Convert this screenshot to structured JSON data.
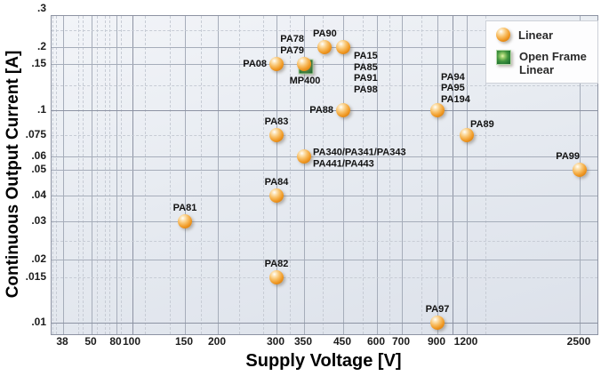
{
  "chart_data": {
    "type": "scatter",
    "xlabel": "Supply Voltage [V]",
    "ylabel": "Continuous Output Current [A]",
    "x_scale": "log",
    "y_scale": "log",
    "xlim": [
      35,
      2800
    ],
    "ylim": [
      0.009,
      0.3
    ],
    "grid": true,
    "legend_position": "top-right",
    "x_ticks": [
      38,
      50,
      80,
      100,
      150,
      200,
      300,
      350,
      450,
      600,
      700,
      900,
      1200,
      2500
    ],
    "x_tick_labels": [
      "38",
      "50",
      "80",
      "100",
      "150",
      "200",
      "300",
      "350",
      "450",
      "600",
      "700",
      "900",
      "1200",
      "2500"
    ],
    "y_ticks": [
      0.3,
      0.2,
      0.15,
      0.1,
      0.075,
      0.06,
      0.05,
      0.04,
      0.03,
      0.02,
      0.015,
      0.01
    ],
    "y_tick_labels": [
      ".3",
      ".2",
      ".15",
      ".1",
      ".075",
      ".06",
      ".05",
      ".04",
      ".03",
      ".02",
      ".015",
      ".01"
    ],
    "legend": [
      {
        "label": "Linear",
        "marker": "sphere",
        "color": "#f09a26"
      },
      {
        "label": "Open Frame Linear",
        "marker": "square",
        "color": "#2e8b3d"
      }
    ],
    "points": [
      {
        "label": "PA08",
        "lines": [
          "PA08"
        ],
        "x": 300,
        "y": 0.15,
        "series": "Linear",
        "label_pos": "left"
      },
      {
        "label": "MP400",
        "lines": [
          "MP400"
        ],
        "x": 350,
        "y": 0.15,
        "series": "Open Frame Linear",
        "label_pos": "below"
      },
      {
        "label": "PA78/PA79",
        "lines": [
          "PA78",
          "PA79"
        ],
        "x": 350,
        "y": 0.15,
        "series": "Linear",
        "label_pos": "above-left"
      },
      {
        "label": "PA90",
        "lines": [
          "PA90"
        ],
        "x": 400,
        "y": 0.2,
        "series": "Linear",
        "label_pos": "above"
      },
      {
        "label": "PA15/PA85/PA91/PA98",
        "lines": [
          "PA15",
          "PA85",
          "PA91",
          "PA98"
        ],
        "x": 450,
        "y": 0.2,
        "series": "Linear",
        "label_pos": "right-below"
      },
      {
        "label": "PA88",
        "lines": [
          "PA88"
        ],
        "x": 450,
        "y": 0.1,
        "series": "Linear",
        "label_pos": "left"
      },
      {
        "label": "PA94/PA95/PA194",
        "lines": [
          "PA94",
          "PA95",
          "PA194"
        ],
        "x": 900,
        "y": 0.1,
        "series": "Linear",
        "label_pos": "above-right"
      },
      {
        "label": "PA83",
        "lines": [
          "PA83"
        ],
        "x": 300,
        "y": 0.075,
        "series": "Linear",
        "label_pos": "above"
      },
      {
        "label": "PA89",
        "lines": [
          "PA89"
        ],
        "x": 1200,
        "y": 0.075,
        "series": "Linear",
        "label_pos": "above-right"
      },
      {
        "label": "PA340/PA341/PA343 PA441/PA443",
        "lines": [
          "PA340/PA341/PA343",
          "PA441/PA443"
        ],
        "x": 350,
        "y": 0.06,
        "series": "Linear",
        "label_pos": "right"
      },
      {
        "label": "PA99",
        "lines": [
          "PA99"
        ],
        "x": 2500,
        "y": 0.05,
        "series": "Linear",
        "label_pos": "above-left"
      },
      {
        "label": "PA84",
        "lines": [
          "PA84"
        ],
        "x": 300,
        "y": 0.04,
        "series": "Linear",
        "label_pos": "above"
      },
      {
        "label": "PA81",
        "lines": [
          "PA81"
        ],
        "x": 150,
        "y": 0.03,
        "series": "Linear",
        "label_pos": "above"
      },
      {
        "label": "PA82",
        "lines": [
          "PA82"
        ],
        "x": 300,
        "y": 0.015,
        "series": "Linear",
        "label_pos": "above"
      },
      {
        "label": "PA97",
        "lines": [
          "PA97"
        ],
        "x": 900,
        "y": 0.01,
        "series": "Linear",
        "label_pos": "above"
      }
    ]
  }
}
